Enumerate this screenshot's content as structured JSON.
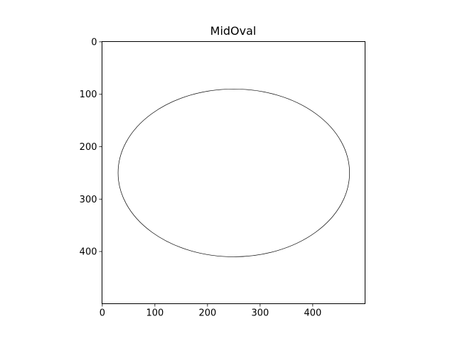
{
  "chart_data": {
    "type": "image",
    "title": "MidOval",
    "xlabel": "",
    "ylabel": "",
    "xlim": [
      -0.5,
      499.5
    ],
    "ylim": [
      499.5,
      -0.5
    ],
    "y_axis_inverted": true,
    "grid": false,
    "legend": "none",
    "x_ticks": [
      0,
      100,
      200,
      300,
      400
    ],
    "y_ticks": [
      0,
      100,
      200,
      300,
      400
    ],
    "x_tick_labels": [
      "0",
      "100",
      "200",
      "300",
      "400"
    ],
    "y_tick_labels": [
      "0",
      "100",
      "200",
      "300",
      "400"
    ],
    "shapes": [
      {
        "kind": "ellipse",
        "center": [
          250,
          250
        ],
        "radius_x": 220,
        "radius_y": 160,
        "fill": "none",
        "color": "#000000"
      }
    ]
  }
}
